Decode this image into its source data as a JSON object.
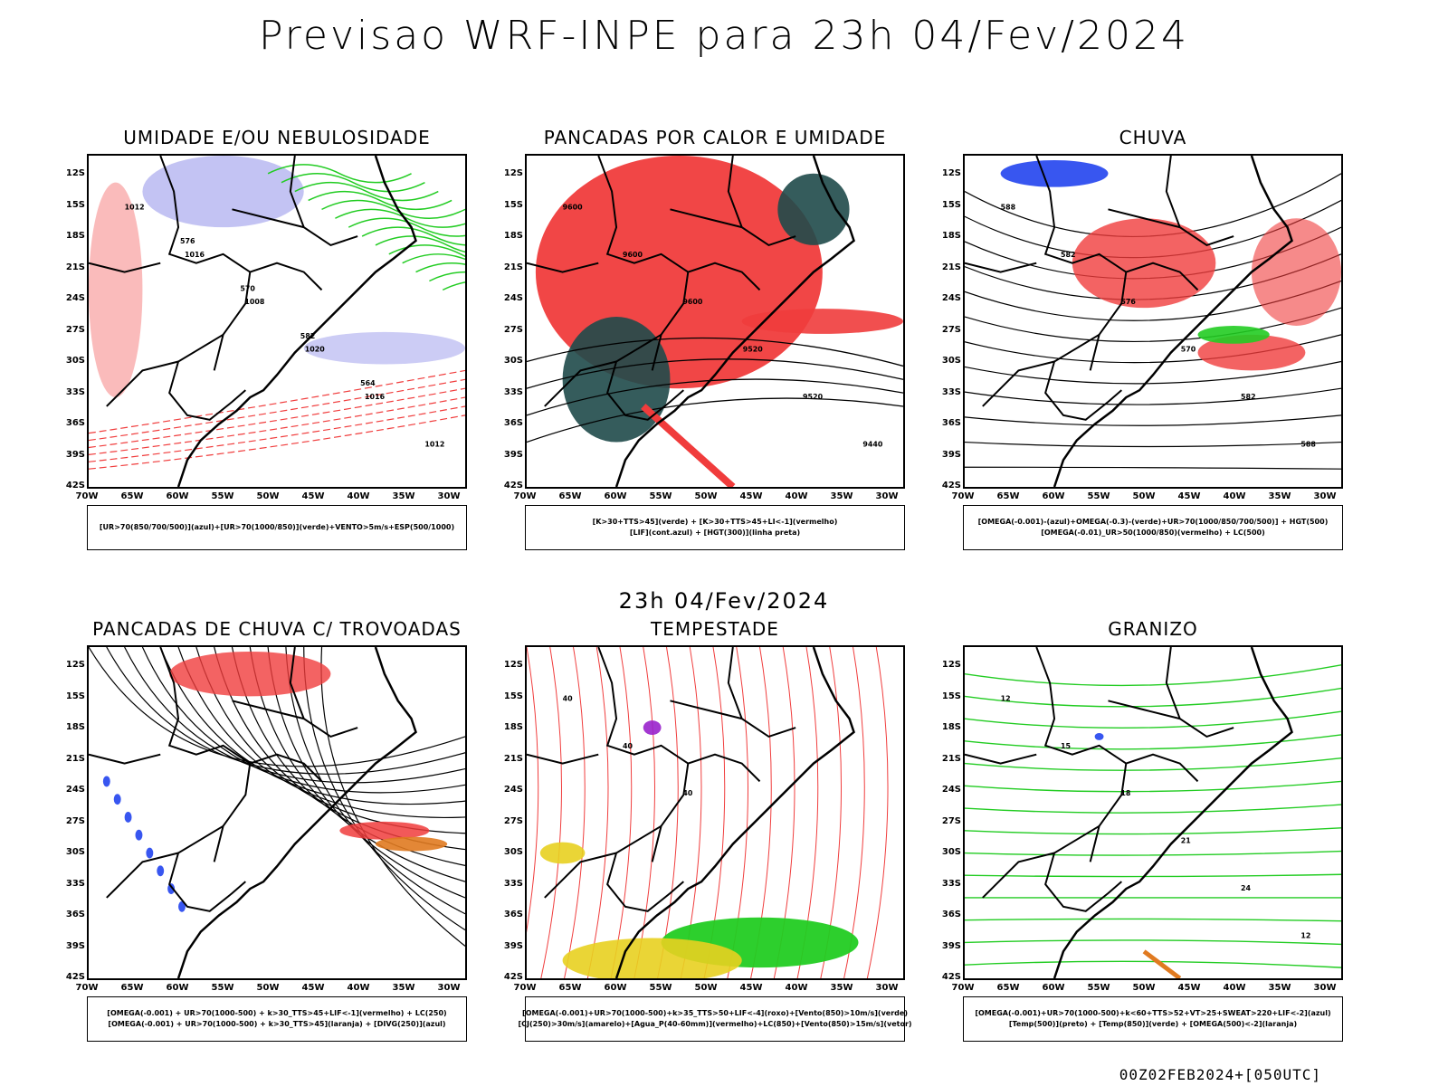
{
  "title": "Previsao WRF-INPE  para 23h 04/Fev/2024",
  "subtitle": "23h 04/Fev/2024",
  "footer": "00Z02FEB2024+[050UTC]",
  "lat_labels": [
    "12S",
    "15S",
    "18S",
    "21S",
    "24S",
    "27S",
    "30S",
    "33S",
    "36S",
    "39S",
    "42S"
  ],
  "lon_labels": [
    "70W",
    "65W",
    "60W",
    "55W",
    "50W",
    "45W",
    "40W",
    "35W",
    "30W"
  ],
  "colors": {
    "red": "#f03c3c",
    "green": "#22cc22",
    "blue": "#2244ee",
    "lavender": "#aaaaee",
    "darkteal": "#1f4a4a",
    "orange": "#e07a20",
    "yellow": "#e8d020",
    "purple": "#9922cc"
  },
  "panels": [
    {
      "title": "UMIDADE E/OU NEBULOSIDADE",
      "legend": [
        "[UR>70(850/700/500)](azul)+[UR>70(1000/850)](verde)+VENTO>5m/s+ESP(500/1000)"
      ],
      "contour_labels": [
        "1012",
        "1016",
        "1008",
        "1020",
        "1016",
        "1012",
        "576",
        "570",
        "582",
        "564"
      ]
    },
    {
      "title": "PANCADAS POR CALOR E UMIDADE",
      "legend": [
        "[K>30+TTS>45](verde) + [K>30+TTS>45+LI<-1](vermelho)",
        "[LIF](cont.azul) + [HGT(300)](linha preta)"
      ],
      "contour_labels": [
        "9600",
        "9600",
        "9600",
        "9520",
        "9520",
        "9440"
      ]
    },
    {
      "title": "CHUVA",
      "legend": [
        "[OMEGA(-0.001)-(azul)+OMEGA(-0.3)-(verde)+UR>70(1000/850/700/500)] + HGT(500)",
        "[OMEGA(-0.01)_UR>50(1000/850)(vermelho) + LC(500)"
      ],
      "contour_labels": [
        "588",
        "582",
        "576",
        "570",
        "582",
        "588"
      ]
    },
    {
      "title": "PANCADAS DE CHUVA C/ TROVOADAS",
      "legend": [
        "[OMEGA(-0.001) + UR>70(1000-500) + k>30_TTS>45+LIF<-1](vermelho) + LC(250)",
        "[OMEGA(-0.001) + UR>70(1000-500) + k>30_TTS>45](laranja) + [DIVG(250)](azul)"
      ],
      "contour_labels": []
    },
    {
      "title": "TEMPESTADE",
      "legend": [
        "[OMEGA(-0.001)+UR>70(1000-500)+k>35_TTS>50+LIF<-4](roxo)+[Vento(850)>10m/s](verde)",
        "[CJ(250)>30m/s](amarelo)+[Agua_P(40-60mm)](vermelho)+LC(850)+[Vento(850)>15m/s](vetor)"
      ],
      "contour_labels": [
        "40",
        "40",
        "40"
      ]
    },
    {
      "title": "GRANIZO",
      "legend": [
        "[OMEGA(-0.001)+UR>70(1000-500)+k<60+TTS>52+VT>25+SWEAT>220+LIF<-2](azul)",
        "[Temp(500)](preto) + [Temp(850)](verde) + [OMEGA(500)<-2](laranja)"
      ],
      "contour_labels": [
        "12",
        "15",
        "18",
        "21",
        "24",
        "12"
      ]
    }
  ]
}
